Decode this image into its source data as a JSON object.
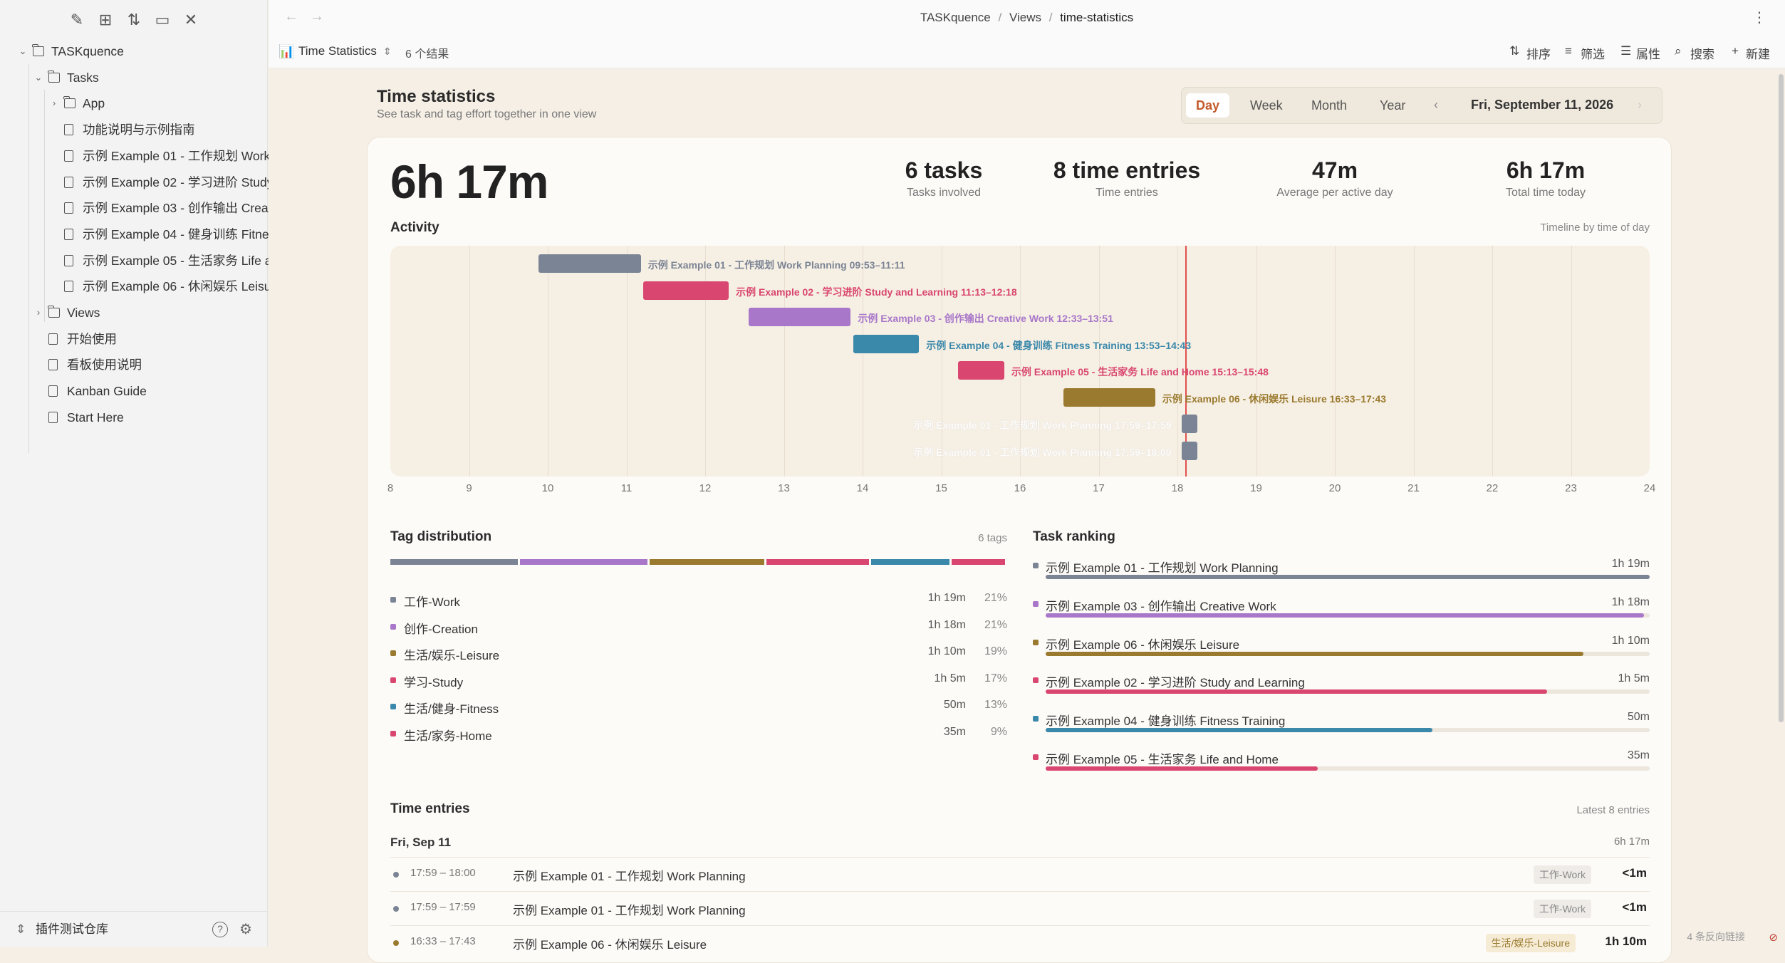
{
  "sidebar": {
    "toolbar_icons": [
      "new-note-icon",
      "new-folder-icon",
      "sort-icon",
      "collapse-all-icon",
      "close-icon"
    ],
    "tree": [
      {
        "label": "TASKquence",
        "type": "folder",
        "depth": 0,
        "chev": "⌄"
      },
      {
        "label": "Tasks",
        "type": "folder",
        "depth": 1,
        "chev": "⌄"
      },
      {
        "label": "App",
        "type": "folder",
        "depth": 2,
        "chev": "›"
      },
      {
        "label": "功能说明与示例指南",
        "type": "file",
        "depth": 2
      },
      {
        "label": "示例 Example 01 - 工作规划 Work",
        "type": "file",
        "depth": 2
      },
      {
        "label": "示例 Example 02 - 学习进阶 Study",
        "type": "file",
        "depth": 2
      },
      {
        "label": "示例 Example 03 - 创作输出 Creati",
        "type": "file",
        "depth": 2
      },
      {
        "label": "示例 Example 04 - 健身训练 Fitnes",
        "type": "file",
        "depth": 2
      },
      {
        "label": "示例 Example 05 - 生活家务 Life a",
        "type": "file",
        "depth": 2
      },
      {
        "label": "示例 Example 06 - 休闲娱乐 Leisur",
        "type": "file",
        "depth": 2
      },
      {
        "label": "Views",
        "type": "folder",
        "depth": 1,
        "chev": "›"
      },
      {
        "label": "开始使用",
        "type": "file",
        "depth": 1
      },
      {
        "label": "看板使用说明",
        "type": "file",
        "depth": 1
      },
      {
        "label": "Kanban Guide",
        "type": "file",
        "depth": 1
      },
      {
        "label": "Start Here",
        "type": "file",
        "depth": 1
      }
    ],
    "vault_name": "插件测试仓库"
  },
  "topbar": {
    "breadcrumb": [
      "TASKquence",
      "Views",
      "time-statistics"
    ],
    "separator": "/",
    "more": "⋮"
  },
  "toolbar": {
    "view_name": "Time Statistics",
    "result_count": "6 个结果",
    "sort": "排序",
    "filter": "筛选",
    "properties": "属性",
    "search": "搜索",
    "new": "新建"
  },
  "header": {
    "title": "Time statistics",
    "subtitle": "See task and tag effort together in one view",
    "periods": [
      "Day",
      "Week",
      "Month",
      "Year"
    ],
    "active_period": "Day",
    "date": "Fri, September 11, 2026"
  },
  "summary": {
    "total": "6h 17m",
    "stats": [
      {
        "value": "6 tasks",
        "label": "Tasks involved"
      },
      {
        "value": "8 time entries",
        "label": "Time entries"
      },
      {
        "value": "47m",
        "label": "Average per active day"
      },
      {
        "value": "6h 17m",
        "label": "Total time today"
      }
    ]
  },
  "activity": {
    "title": "Activity",
    "note": "Timeline by time of day",
    "axis_start": 8,
    "axis_end": 24,
    "ticks": [
      "8",
      "9",
      "10",
      "11",
      "12",
      "13",
      "14",
      "15",
      "16",
      "17",
      "18",
      "19",
      "20",
      "21",
      "22",
      "23",
      "24"
    ],
    "now_hour": 18.1,
    "bars": [
      {
        "label": "示例 Example 01 - 工作规划 Work Planning 09:53–11:11",
        "start": 9.883,
        "end": 11.183,
        "color": "#7b8494",
        "faded": false
      },
      {
        "label": "示例 Example 02 - 学习进阶 Study and Learning 11:13–12:18",
        "start": 11.217,
        "end": 12.3,
        "color": "#d9466f",
        "faded": false
      },
      {
        "label": "示例 Example 03 - 创作输出 Creative Work 12:33–13:51",
        "start": 12.55,
        "end": 13.85,
        "color": "#a877c9",
        "faded": false
      },
      {
        "label": "示例 Example 04 - 健身训练 Fitness Training 13:53–14:43",
        "start": 13.883,
        "end": 14.717,
        "color": "#3a88aa",
        "faded": false
      },
      {
        "label": "示例 Example 05 - 生活家务 Life and Home 15:13–15:48",
        "start": 15.217,
        "end": 15.8,
        "color": "#d9466f",
        "faded": false
      },
      {
        "label": "示例 Example 06 - 休闲娱乐 Leisure 16:33–17:43",
        "start": 16.55,
        "end": 17.717,
        "color": "#9a7a2e",
        "faded": false
      },
      {
        "label": "示例 Example 01 - 工作规划 Work Planning 17:59–17:59",
        "start": 18.05,
        "end": 18.25,
        "color": "#7b8494",
        "faded": true
      },
      {
        "label": "示例 Example 01 - 工作规划 Work Planning 17:59–18:00",
        "start": 18.05,
        "end": 18.25,
        "color": "#7b8494",
        "faded": true
      }
    ]
  },
  "tags": {
    "title": "Tag distribution",
    "note": "6 tags",
    "items": [
      {
        "name": "工作-Work",
        "duration": "1h 19m",
        "percent": 21,
        "pct_label": "21%",
        "color": "#7b8494"
      },
      {
        "name": "创作-Creation",
        "duration": "1h 18m",
        "percent": 21,
        "pct_label": "21%",
        "color": "#a877c9"
      },
      {
        "name": "生活/娱乐-Leisure",
        "duration": "1h 10m",
        "percent": 19,
        "pct_label": "19%",
        "color": "#9a7a2e"
      },
      {
        "name": "学习-Study",
        "duration": "1h 5m",
        "percent": 17,
        "pct_label": "17%",
        "color": "#d9466f"
      },
      {
        "name": "生活/健身-Fitness",
        "duration": "50m",
        "percent": 13,
        "pct_label": "13%",
        "color": "#3a88aa"
      },
      {
        "name": "生活/家务-Home",
        "duration": "35m",
        "percent": 9,
        "pct_label": "9%",
        "color": "#d9466f"
      }
    ]
  },
  "ranking": {
    "title": "Task ranking",
    "items": [
      {
        "name": "示例 Example 01 - 工作规划 Work Planning",
        "duration": "1h 19m",
        "fraction": 1.0,
        "color": "#7b8494"
      },
      {
        "name": "示例 Example 03 - 创作输出 Creative Work",
        "duration": "1h 18m",
        "fraction": 0.99,
        "color": "#a877c9"
      },
      {
        "name": "示例 Example 06 - 休闲娱乐 Leisure",
        "duration": "1h 10m",
        "fraction": 0.89,
        "color": "#9a7a2e"
      },
      {
        "name": "示例 Example 02 - 学习进阶 Study and Learning",
        "duration": "1h 5m",
        "fraction": 0.83,
        "color": "#d9466f"
      },
      {
        "name": "示例 Example 04 - 健身训练 Fitness Training",
        "duration": "50m",
        "fraction": 0.64,
        "color": "#3a88aa"
      },
      {
        "name": "示例 Example 05 - 生活家务 Life and Home",
        "duration": "35m",
        "fraction": 0.45,
        "color": "#d9466f"
      }
    ]
  },
  "entries": {
    "title": "Time entries",
    "note": "Latest 8 entries",
    "date": "Fri, Sep 11",
    "date_total": "6h 17m",
    "items": [
      {
        "time": "17:59 – 18:00",
        "name": "示例 Example 01 - 工作规划 Work Planning",
        "tag": "工作-Work",
        "duration": "<1m",
        "color": "#7b8494",
        "tag_bg": "#efece8",
        "tag_fg": "#888"
      },
      {
        "time": "17:59 – 17:59",
        "name": "示例 Example 01 - 工作规划 Work Planning",
        "tag": "工作-Work",
        "duration": "<1m",
        "color": "#7b8494",
        "tag_bg": "#efece8",
        "tag_fg": "#888"
      },
      {
        "time": "16:33 – 17:43",
        "name": "示例 Example 06 - 休闲娱乐 Leisure",
        "tag": "生活/娱乐-Leisure",
        "duration": "1h 10m",
        "color": "#9a7a2e",
        "tag_bg": "#f6ecd6",
        "tag_fg": "#9a7a2e"
      }
    ]
  },
  "status": {
    "backlinks": "4 条反向链接"
  }
}
